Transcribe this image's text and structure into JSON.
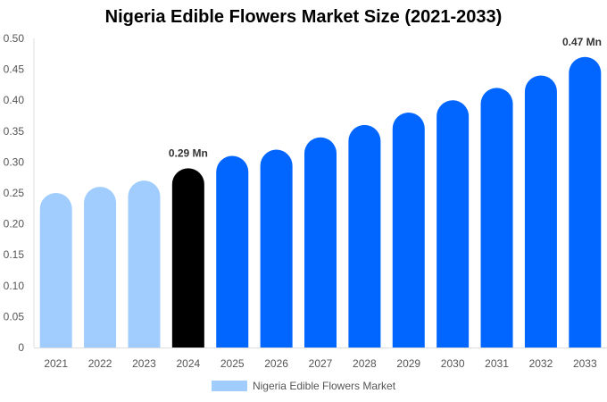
{
  "chart_data": {
    "type": "bar",
    "title": "Nigeria Edible Flowers Market Size (2021-2033)",
    "categories": [
      "2021",
      "2022",
      "2023",
      "2024",
      "2025",
      "2026",
      "2027",
      "2028",
      "2029",
      "2030",
      "2031",
      "2032",
      "2033"
    ],
    "series": [
      {
        "name": "Nigeria Edible Flowers Market",
        "values": [
          0.25,
          0.26,
          0.27,
          0.29,
          0.31,
          0.32,
          0.34,
          0.36,
          0.38,
          0.4,
          0.42,
          0.44,
          0.47
        ]
      }
    ],
    "ylim": [
      0,
      0.5
    ],
    "yticks": [
      "0",
      "0.05",
      "0.10",
      "0.15",
      "0.20",
      "0.25",
      "0.30",
      "0.35",
      "0.40",
      "0.45",
      "0.50"
    ],
    "data_labels": [
      {
        "index": 3,
        "text": "0.29 Mn"
      },
      {
        "index": 12,
        "text": "0.47 Mn"
      }
    ],
    "bar_colors": {
      "history": "#a0cdfd",
      "current": "#000000",
      "forecast": "#0066ff"
    },
    "grid": false,
    "legend": "bottom"
  }
}
